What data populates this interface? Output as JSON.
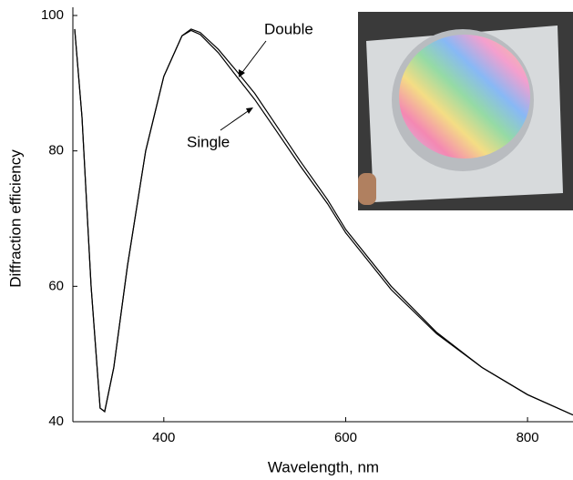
{
  "chart_data": {
    "type": "line",
    "x_label": "Wavelength, nm",
    "y_label": "Diffraction efficiency",
    "x": [
      302,
      310,
      320,
      330,
      335,
      345,
      360,
      380,
      400,
      420,
      430,
      440,
      460,
      480,
      500,
      520,
      550,
      580,
      600,
      650,
      700,
      750,
      800,
      850
    ],
    "series": [
      {
        "name": "Double",
        "color": "#000000",
        "values": [
          98,
          85,
          60,
          42,
          41.5,
          48,
          63,
          80,
          91,
          97,
          98,
          97.5,
          95,
          91.8,
          88.5,
          84.5,
          78.5,
          72.8,
          68.4,
          60,
          53.2,
          48,
          44,
          41
        ]
      },
      {
        "name": "Single",
        "color": "#000000",
        "values": [
          98,
          85,
          60,
          42,
          41.5,
          48,
          63,
          80,
          91,
          97,
          97.8,
          97.2,
          94.5,
          91,
          87.6,
          83.7,
          77.8,
          72.2,
          67.9,
          59.5,
          53,
          48,
          44,
          41
        ]
      }
    ],
    "xlim": [
      300,
      850
    ],
    "ylim": [
      40,
      100
    ],
    "xticks": [
      400,
      600,
      800
    ],
    "yticks": [
      40,
      60,
      80,
      100
    ]
  }
}
